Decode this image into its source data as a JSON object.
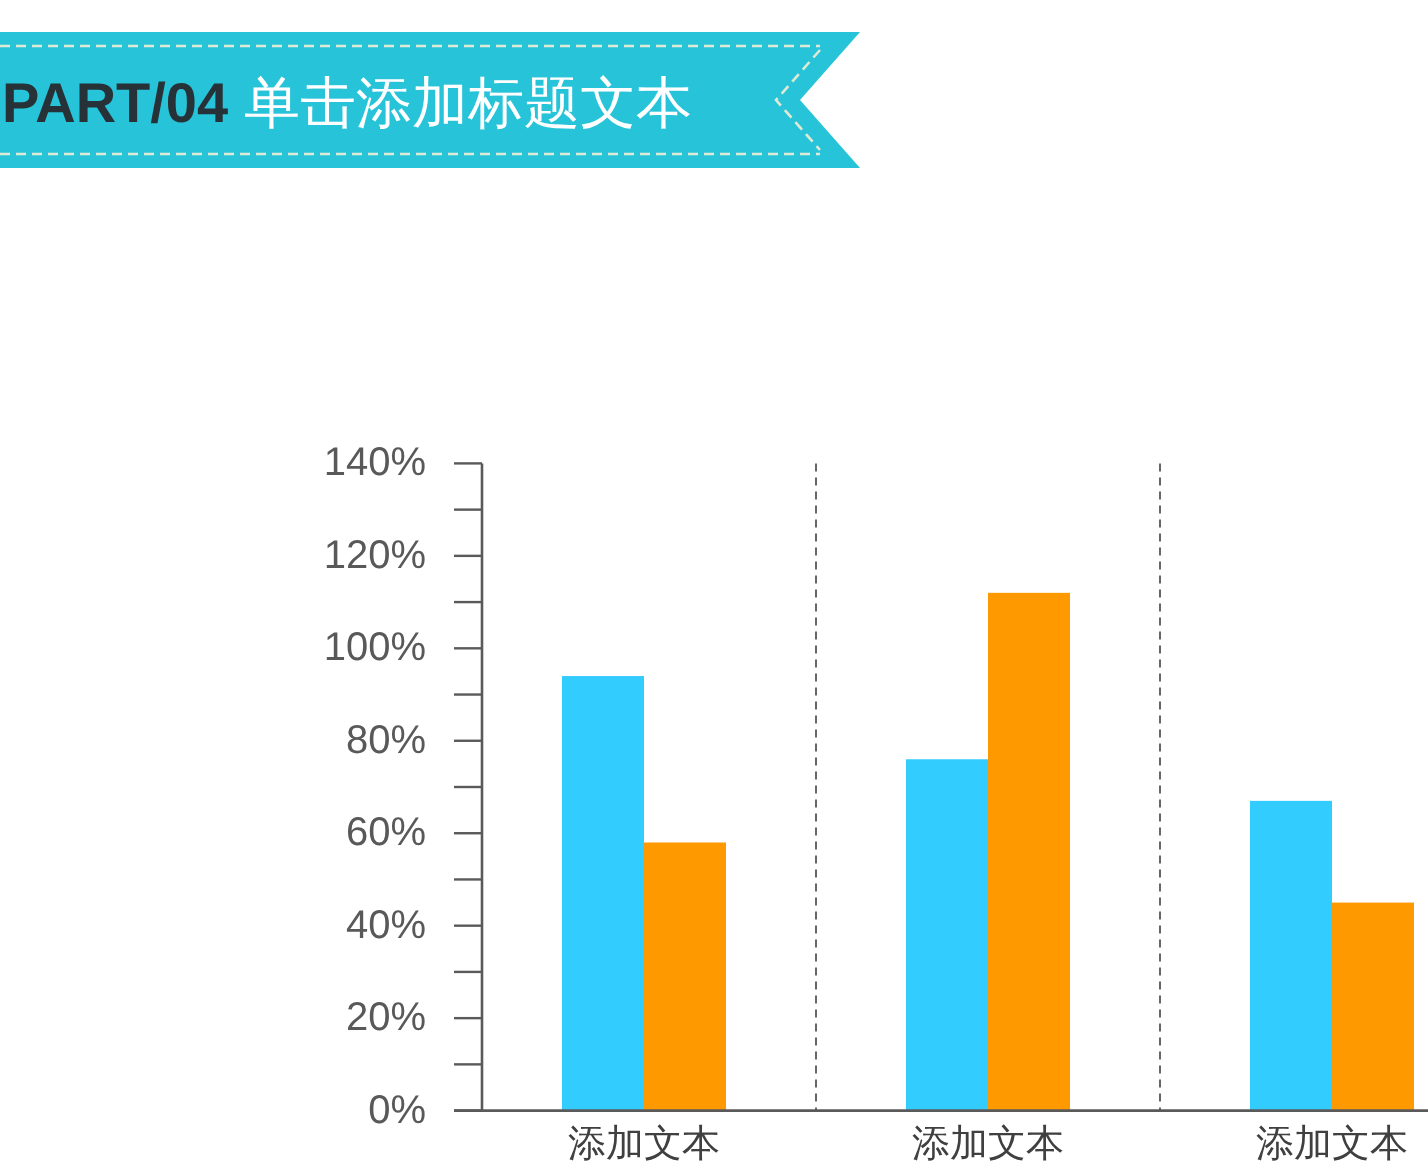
{
  "chart_data": {
    "type": "bar",
    "title": "**PART/04** 单击添加标题文本",
    "categories": [
      "添加文本",
      "添加文本",
      "添加文本"
    ],
    "series": [
      {
        "color": "#33ccff",
        "values": [
          94,
          76,
          67
        ]
      },
      {
        "color": "#ff9900",
        "values": [
          58,
          112,
          45
        ]
      }
    ],
    "ylim": [
      0,
      140
    ],
    "yticks": [
      {
        "value": 0,
        "label": "0%"
      },
      {
        "value": 10,
        "label": null
      },
      {
        "value": 20,
        "label": "20%"
      },
      {
        "value": 30,
        "label": null
      },
      {
        "value": 40,
        "label": "40%"
      },
      {
        "value": 50,
        "label": null
      },
      {
        "value": 60,
        "label": "60%"
      },
      {
        "value": 70,
        "label": null
      },
      {
        "value": 80,
        "label": "80%"
      },
      {
        "value": 90,
        "label": null
      },
      {
        "value": 100,
        "label": "100%"
      },
      {
        "value": 110,
        "label": null
      },
      {
        "value": 120,
        "label": "120%"
      },
      {
        "value": 130,
        "label": null
      },
      {
        "value": 140,
        "label": "140%"
      }
    ],
    "grid": "x"
  }
}
